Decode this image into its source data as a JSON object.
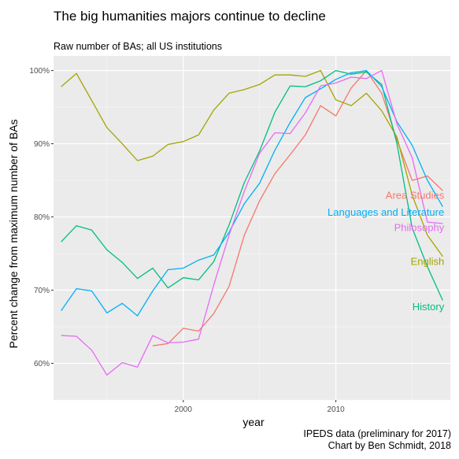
{
  "chart_data": {
    "type": "line",
    "title": "The big humanities majors continue to decline",
    "subtitle": "Raw number of BAs; all US institutions",
    "caption": [
      "IPEDS data (preliminary for 2017)",
      "Chart by Ben Schmidt, 2018"
    ],
    "xlabel": "year",
    "ylabel": "Percent change from maximum number of BAs",
    "xlim": [
      1991.5,
      2017.5
    ],
    "ylim": [
      55,
      102
    ],
    "x_ticks": [
      2000,
      2010
    ],
    "y_ticks": [
      60,
      70,
      80,
      90,
      100
    ],
    "y_tick_labels": [
      "60%",
      "70%",
      "80%",
      "90%",
      "100%"
    ],
    "grid": true,
    "legend": "direct labels at line ends",
    "series": [
      {
        "name": "Area Studies",
        "color": "#F8766D",
        "x": [
          1998,
          1999,
          2000,
          2001,
          2002,
          2003,
          2004,
          2005,
          2006,
          2007,
          2008,
          2009,
          2010,
          2011,
          2012,
          2013,
          2014,
          2015,
          2016,
          2017
        ],
        "values": [
          62.4,
          62.7,
          64.8,
          64.4,
          66.8,
          70.5,
          77.5,
          82.2,
          85.9,
          88.5,
          91.2,
          95.2,
          93.8,
          97.6,
          100.0,
          96.9,
          90.5,
          85.0,
          85.6,
          83.6
        ]
      },
      {
        "name": "English",
        "color": "#A3A500",
        "x": [
          1992,
          1993,
          1994,
          1995,
          1996,
          1997,
          1998,
          1999,
          2000,
          2001,
          2002,
          2003,
          2004,
          2005,
          2006,
          2007,
          2008,
          2009,
          2010,
          2011,
          2012,
          2013,
          2014,
          2015,
          2016,
          2017
        ],
        "values": [
          97.8,
          99.6,
          95.9,
          92.2,
          90.0,
          87.7,
          88.3,
          89.9,
          90.3,
          91.2,
          94.6,
          96.9,
          97.4,
          98.1,
          99.4,
          99.4,
          99.2,
          100.0,
          96.0,
          95.2,
          96.9,
          94.5,
          90.9,
          83.0,
          77.5,
          74.6
        ]
      },
      {
        "name": "History",
        "color": "#00BF7D",
        "x": [
          1992,
          1993,
          1994,
          1995,
          1996,
          1997,
          1998,
          1999,
          2000,
          2001,
          2002,
          2003,
          2004,
          2005,
          2006,
          2007,
          2008,
          2009,
          2010,
          2011,
          2012,
          2013,
          2014,
          2015,
          2016,
          2017
        ],
        "values": [
          76.6,
          78.8,
          78.2,
          75.5,
          73.8,
          71.6,
          73.0,
          70.3,
          71.7,
          71.4,
          73.9,
          78.9,
          84.7,
          89.0,
          94.3,
          97.9,
          97.8,
          98.6,
          100.0,
          99.5,
          99.8,
          98.1,
          90.0,
          78.5,
          73.2,
          68.6
        ]
      },
      {
        "name": "Languages and Literature",
        "color": "#00B0F6",
        "x": [
          1992,
          1993,
          1994,
          1995,
          1996,
          1997,
          1998,
          1999,
          2000,
          2001,
          2002,
          2003,
          2004,
          2005,
          2006,
          2007,
          2008,
          2009,
          2010,
          2011,
          2012,
          2013,
          2014,
          2015,
          2016,
          2017
        ],
        "values": [
          67.2,
          70.2,
          69.9,
          66.9,
          68.2,
          66.5,
          69.9,
          72.8,
          73.0,
          74.1,
          74.8,
          77.9,
          81.8,
          84.6,
          89.1,
          92.9,
          96.3,
          97.5,
          98.8,
          99.7,
          100.0,
          97.8,
          93.0,
          89.8,
          85.0,
          81.4
        ]
      },
      {
        "name": "Philosophy",
        "color": "#E76BF3",
        "x": [
          1992,
          1993,
          1994,
          1995,
          1996,
          1997,
          1998,
          1999,
          2000,
          2001,
          2002,
          2003,
          2004,
          2005,
          2006,
          2007,
          2008,
          2009,
          2010,
          2011,
          2012,
          2013,
          2014,
          2015,
          2016,
          2017
        ],
        "values": [
          63.8,
          63.7,
          61.8,
          58.4,
          60.1,
          59.5,
          63.8,
          62.8,
          62.9,
          63.3,
          70.7,
          77.5,
          83.5,
          88.7,
          91.5,
          91.4,
          94.2,
          97.9,
          98.3,
          99.1,
          98.9,
          100.0,
          92.7,
          88.1,
          79.3,
          79.1
        ]
      }
    ]
  }
}
